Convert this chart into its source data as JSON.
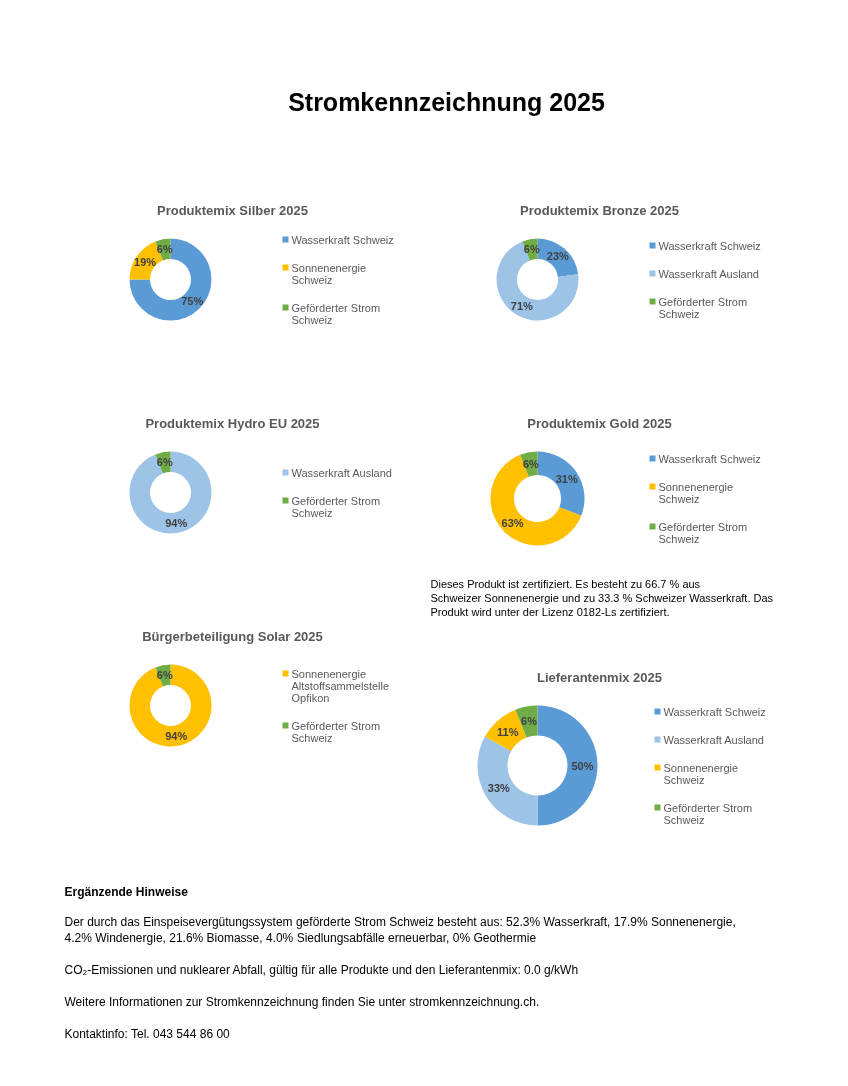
{
  "chart_data": [
    {
      "type": "other",
      "title": "Stromkennzeichnung 2025"
    },
    {
      "type": "donut",
      "title": "Produktemix Silber 2025",
      "categories": [
        "Wasserkraft Schweiz",
        "Sonnenenergie Schweiz",
        "Geförderter Strom Schweiz"
      ],
      "values": [
        75,
        19,
        6
      ],
      "colors": [
        "#5b9bd5",
        "#ffc000",
        "#70ad47"
      ],
      "value_labels": [
        "75%",
        "19%",
        "6%"
      ],
      "legend": "right"
    },
    {
      "type": "donut",
      "title": "Produktemix Bronze 2025",
      "categories": [
        "Wasserkraft Schweiz",
        "Wasserkraft Ausland",
        "Geförderter Strom Schweiz"
      ],
      "values": [
        23,
        71,
        6
      ],
      "colors": [
        "#5b9bd5",
        "#9dc3e6",
        "#70ad47"
      ],
      "value_labels": [
        "23%",
        "71%",
        "6%"
      ],
      "legend": "right"
    },
    {
      "type": "donut",
      "title": "Produktemix Hydro EU 2025",
      "categories": [
        "Wasserkraft Ausland",
        "Geförderter Strom Schweiz"
      ],
      "values": [
        94,
        6
      ],
      "colors": [
        "#9dc3e6",
        "#70ad47"
      ],
      "value_labels": [
        "94%",
        "6%"
      ],
      "legend": "right"
    },
    {
      "type": "donut",
      "title": "Produktemix Gold 2025",
      "categories": [
        "Wasserkraft Schweiz",
        "Sonnenenergie Schweiz",
        "Geförderter Strom Schweiz"
      ],
      "values": [
        31,
        63,
        6
      ],
      "colors": [
        "#5b9bd5",
        "#ffc000",
        "#70ad47"
      ],
      "value_labels": [
        "31%",
        "63%",
        "6%"
      ],
      "legend": "right",
      "annotations": [
        "Dieses Produkt ist zertifiziert. Es besteht zu 66.7 % aus Schweizer Sonnenenergie und zu 33.3 % Schweizer Wasserkraft. Das Produkt wird unter der Lizenz 0182-Ls zertifiziert."
      ]
    },
    {
      "type": "donut",
      "title": "Bürgerbeteiligung Solar 2025",
      "categories": [
        "Sonnenenergie Altstoffsammelstelle Opfikon",
        "Geförderter Strom Schweiz"
      ],
      "values": [
        94,
        6
      ],
      "colors": [
        "#ffc000",
        "#70ad47"
      ],
      "value_labels": [
        "94%",
        "6%"
      ],
      "legend": "right"
    },
    {
      "type": "donut",
      "title": "Lieferantenmix 2025",
      "categories": [
        "Wasserkraft Schweiz",
        "Wasserkraft Ausland",
        "Sonnenenergie Schweiz",
        "Geförderter Strom Schweiz"
      ],
      "values": [
        50,
        33,
        11,
        6
      ],
      "colors": [
        "#5b9bd5",
        "#9dc3e6",
        "#ffc000",
        "#70ad47"
      ],
      "value_labels": [
        "50%",
        "33%",
        "11%",
        "6%"
      ],
      "legend": "right"
    },
    {
      "type": "other",
      "title": "Ergänzende Hinweise",
      "annotations": [
        "Der durch das Einspeisevergütungssystem geförderte Strom Schweiz besteht aus: 52.3% Wasserkraft, 17.9% Sonnenenergie, 4.2% Windenergie, 21.6% Biomasse, 4.0% Siedlungsabfälle erneuerbar, 0% Geothermie",
        "CO₂-Emissionen und nuklearer Abfall, gültig für alle Produkte und den Lieferantenmix: 0.0 g/kWh",
        "Weitere Informationen zur Stromkennzeichnung finden Sie unter stromkennzeichnung.ch.",
        "Kontaktinfo: Tel. 043 544 86 00"
      ]
    }
  ]
}
